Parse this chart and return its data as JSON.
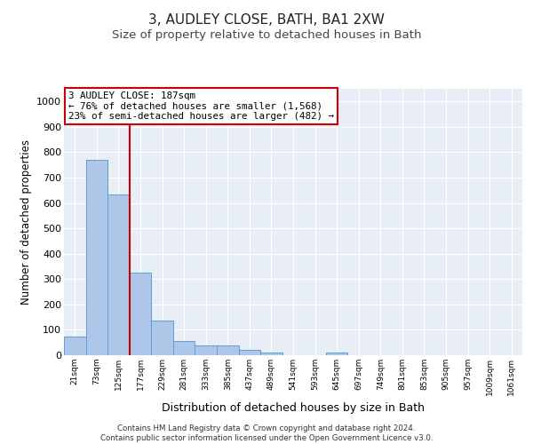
{
  "title1": "3, AUDLEY CLOSE, BATH, BA1 2XW",
  "title2": "Size of property relative to detached houses in Bath",
  "xlabel": "Distribution of detached houses by size in Bath",
  "ylabel": "Number of detached properties",
  "categories": [
    "21sqm",
    "73sqm",
    "125sqm",
    "177sqm",
    "229sqm",
    "281sqm",
    "333sqm",
    "385sqm",
    "437sqm",
    "489sqm",
    "541sqm",
    "593sqm",
    "645sqm",
    "697sqm",
    "749sqm",
    "801sqm",
    "853sqm",
    "905sqm",
    "957sqm",
    "1009sqm",
    "1061sqm"
  ],
  "values": [
    75,
    770,
    635,
    325,
    135,
    55,
    40,
    40,
    20,
    10,
    0,
    0,
    10,
    0,
    0,
    0,
    0,
    0,
    0,
    0,
    0
  ],
  "bar_color": "#aec6e8",
  "bar_edge_color": "#5f9fd4",
  "vline_color": "#cc0000",
  "vline_x": 2.5,
  "annotation_text": "3 AUDLEY CLOSE: 187sqm\n← 76% of detached houses are smaller (1,568)\n23% of semi-detached houses are larger (482) →",
  "annotation_box_color": "#cc0000",
  "ylim": [
    0,
    1050
  ],
  "yticks": [
    0,
    100,
    200,
    300,
    400,
    500,
    600,
    700,
    800,
    900,
    1000
  ],
  "bg_color": "#e8eef5",
  "footnote": "Contains HM Land Registry data © Crown copyright and database right 2024.\nContains public sector information licensed under the Open Government Licence v3.0.",
  "title1_fontsize": 11,
  "title2_fontsize": 9.5,
  "xlabel_fontsize": 9,
  "ylabel_fontsize": 8.5
}
